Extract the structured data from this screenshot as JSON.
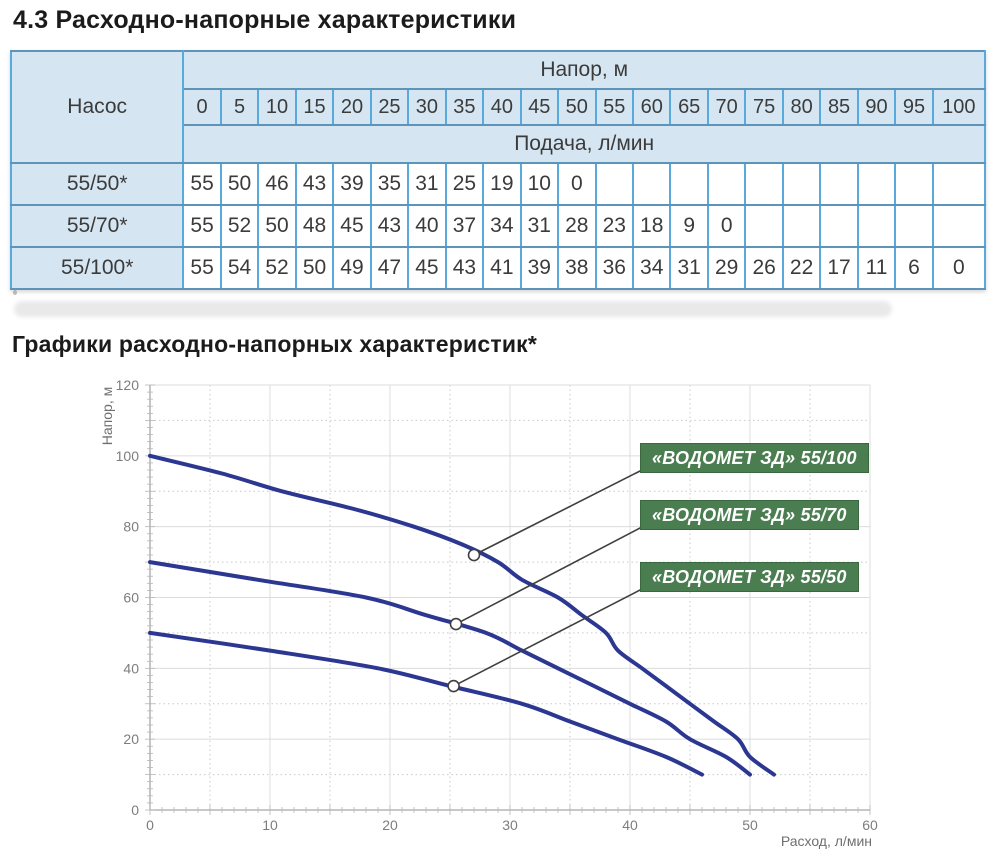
{
  "page": {
    "heading_table": "4.3 Расходно-напорные характеристики",
    "heading_chart": "Графики расходно-напорных характеристик*"
  },
  "table": {
    "pump_header": "Насос",
    "head_header": "Напор, м",
    "flow_header": "Подача, л/мин",
    "head_values": [
      "0",
      "5",
      "10",
      "15",
      "20",
      "25",
      "30",
      "35",
      "40",
      "45",
      "50",
      "55",
      "60",
      "65",
      "70",
      "75",
      "80",
      "85",
      "90",
      "95",
      "100"
    ],
    "rows": [
      {
        "pump": "55/50*",
        "values": [
          "55",
          "50",
          "46",
          "43",
          "39",
          "35",
          "31",
          "25",
          "19",
          "10",
          "0",
          "",
          "",
          "",
          "",
          "",
          "",
          "",
          "",
          "",
          ""
        ]
      },
      {
        "pump": "55/70*",
        "values": [
          "55",
          "52",
          "50",
          "48",
          "45",
          "43",
          "40",
          "37",
          "34",
          "31",
          "28",
          "23",
          "18",
          "9",
          "0",
          "",
          "",
          "",
          "",
          "",
          ""
        ]
      },
      {
        "pump": "55/100*",
        "values": [
          "55",
          "54",
          "52",
          "50",
          "49",
          "47",
          "45",
          "43",
          "41",
          "39",
          "38",
          "36",
          "34",
          "31",
          "29",
          "26",
          "22",
          "17",
          "11",
          "6",
          "0"
        ]
      }
    ]
  },
  "chart_data": {
    "type": "line",
    "title": "",
    "xlabel": "Расход, л/мин",
    "ylabel": "Напор, м",
    "xlim": [
      0,
      60
    ],
    "ylim": [
      0,
      120
    ],
    "xticks": [
      0,
      10,
      20,
      30,
      40,
      50,
      60
    ],
    "yticks": [
      0,
      20,
      40,
      60,
      80,
      100,
      120
    ],
    "grid": "major solid, minor dotted (x every 5, y every 10)",
    "legend_position": "callout-labels-right",
    "line_color": "#2c3792",
    "label_bg_color": "#4a7d50",
    "series": [
      {
        "name": "«ВОДОМЕТ ЗД» 55/100",
        "points": [
          [
            0,
            100
          ],
          [
            6,
            95
          ],
          [
            11,
            90
          ],
          [
            17,
            85
          ],
          [
            22,
            80
          ],
          [
            26,
            75
          ],
          [
            29,
            70
          ],
          [
            31,
            65
          ],
          [
            34,
            60
          ],
          [
            36,
            55
          ],
          [
            38,
            50
          ],
          [
            39,
            45
          ],
          [
            41,
            40
          ],
          [
            43,
            35
          ],
          [
            45,
            30
          ],
          [
            47,
            25
          ],
          [
            49,
            20
          ],
          [
            50,
            15
          ],
          [
            52,
            10
          ]
        ],
        "callout_at": [
          27,
          72
        ]
      },
      {
        "name": "«ВОДОМЕТ ЗД» 55/70",
        "points": [
          [
            0,
            70
          ],
          [
            9,
            65
          ],
          [
            18,
            60
          ],
          [
            23,
            55
          ],
          [
            28,
            50
          ],
          [
            31,
            45
          ],
          [
            34,
            40
          ],
          [
            37,
            35
          ],
          [
            40,
            30
          ],
          [
            43,
            25
          ],
          [
            45,
            20
          ],
          [
            48,
            15
          ],
          [
            50,
            10
          ]
        ],
        "callout_at": [
          25.5,
          52.5
        ]
      },
      {
        "name": "«ВОДОМЕТ ЗД» 55/50",
        "points": [
          [
            0,
            50
          ],
          [
            10,
            45
          ],
          [
            19,
            40
          ],
          [
            25,
            35
          ],
          [
            31,
            30
          ],
          [
            35,
            25
          ],
          [
            39,
            20
          ],
          [
            43,
            15
          ],
          [
            46,
            10
          ]
        ],
        "callout_at": [
          25.3,
          35
        ]
      }
    ]
  }
}
